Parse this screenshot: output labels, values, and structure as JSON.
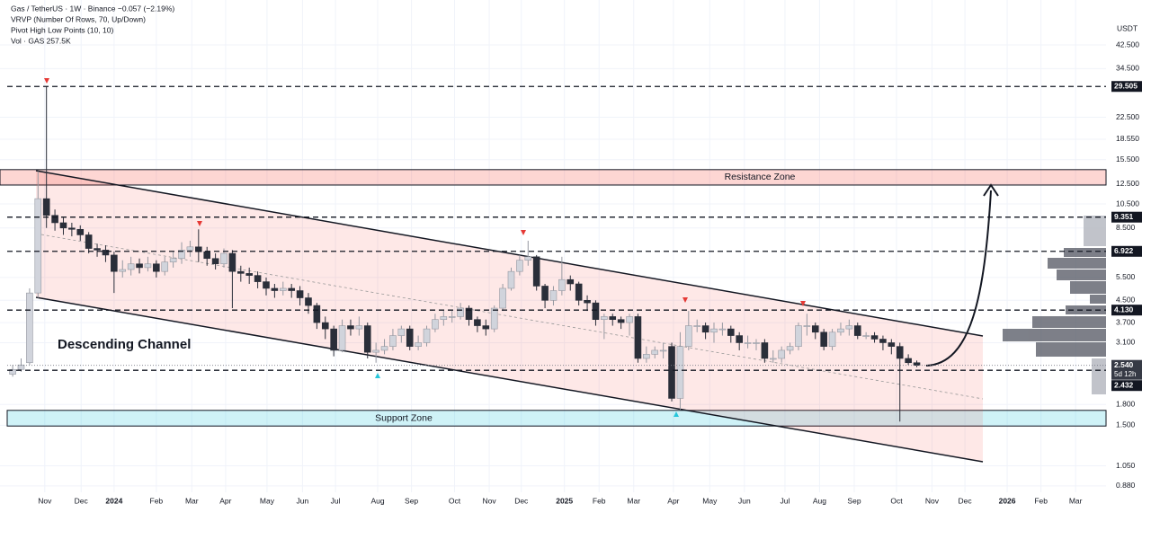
{
  "chart_data": {
    "type": "candlestick",
    "header": [
      "Gas / TetherUS · 1W · Binance  −0.057 (−2.19%)",
      "VRVP (Number Of Rows, 70, Up/Down)",
      "Pivot High Low Points (10, 10)",
      "Vol · GAS  257.5K"
    ],
    "y_axis_title": "USDT",
    "annotation": "Descending Channel",
    "resistance_zone": {
      "label": "Resistance Zone",
      "range": [
        12.4,
        14.2
      ]
    },
    "support_zone": {
      "label": "Support Zone",
      "range": [
        1.49,
        1.71
      ]
    },
    "log_scale": true,
    "grid": true,
    "up_color": "#d1d4dc",
    "down_color": "#2a2e39",
    "ylim": [
      0.832,
      63.1
    ],
    "yticks": [
      {
        "value": 42.5,
        "label": "42.500"
      },
      {
        "value": 34.5,
        "label": "34.500"
      },
      {
        "value": 22.5,
        "label": "22.500"
      },
      {
        "value": 18.55,
        "label": "18.550"
      },
      {
        "value": 15.5,
        "label": "15.500"
      },
      {
        "value": 12.5,
        "label": "12.500"
      },
      {
        "value": 10.5,
        "label": "10.500"
      },
      {
        "value": 8.5,
        "label": "8.500"
      },
      {
        "value": 5.5,
        "label": "5.500"
      },
      {
        "value": 4.5,
        "label": "4.500"
      },
      {
        "value": 3.7,
        "label": "3.700"
      },
      {
        "value": 3.1,
        "label": "3.100"
      },
      {
        "value": 1.8,
        "label": "1.800"
      },
      {
        "value": 1.5,
        "label": "1.500"
      },
      {
        "value": 1.05,
        "label": "1.050"
      },
      {
        "value": 0.88,
        "label": "0.880"
      }
    ],
    "levels": [
      {
        "value": 29.505,
        "label": "29.505"
      },
      {
        "value": 9.351,
        "label": "9.351"
      },
      {
        "value": 6.922,
        "label": "6.922"
      },
      {
        "value": 4.13,
        "label": "4.130"
      },
      {
        "value": 2.432,
        "label": "2.432"
      }
    ],
    "last_price": {
      "value": 2.54,
      "label": "2.540",
      "countdown": "5d 12h"
    },
    "xlim": [
      -1.5,
      129.4
    ],
    "xticks": [
      {
        "value": 3.8,
        "label": "Nov"
      },
      {
        "value": 8.1,
        "label": "Dec"
      },
      {
        "value": 12,
        "label": "2024"
      },
      {
        "value": 17,
        "label": "Feb"
      },
      {
        "value": 21.2,
        "label": "Mar"
      },
      {
        "value": 25.2,
        "label": "Apr"
      },
      {
        "value": 30.1,
        "label": "May"
      },
      {
        "value": 34.3,
        "label": "Jun"
      },
      {
        "value": 38.2,
        "label": "Jul"
      },
      {
        "value": 43.2,
        "label": "Aug"
      },
      {
        "value": 47.2,
        "label": "Sep"
      },
      {
        "value": 52.3,
        "label": "Oct"
      },
      {
        "value": 56.4,
        "label": "Nov"
      },
      {
        "value": 60.2,
        "label": "Dec"
      },
      {
        "value": 65.3,
        "label": "2025"
      },
      {
        "value": 69.4,
        "label": "Feb"
      },
      {
        "value": 73.5,
        "label": "Mar"
      },
      {
        "value": 78.2,
        "label": "Apr"
      },
      {
        "value": 82.5,
        "label": "May"
      },
      {
        "value": 86.6,
        "label": "Jun"
      },
      {
        "value": 91.4,
        "label": "Jul"
      },
      {
        "value": 95.5,
        "label": "Aug"
      },
      {
        "value": 99.6,
        "label": "Sep"
      },
      {
        "value": 104.6,
        "label": "Oct"
      },
      {
        "value": 108.8,
        "label": "Nov"
      },
      {
        "value": 112.7,
        "label": "Dec"
      },
      {
        "value": 117.7,
        "label": "2026"
      },
      {
        "value": 121.7,
        "label": "Feb"
      },
      {
        "value": 125.8,
        "label": "Mar"
      }
    ],
    "open": [
      2.35,
      2.45,
      2.6,
      4.8,
      11,
      9.5,
      8.9,
      8.5,
      8.4,
      8,
      7.1,
      7,
      6.7,
      5.8,
      5.9,
      6.2,
      6,
      6.2,
      5.8,
      6.3,
      6.5,
      7,
      7.2,
      6.9,
      6.5,
      6.2,
      6.8,
      5.8,
      5.7,
      5.6,
      5.3,
      5,
      4.9,
      5,
      4.9,
      4.6,
      4.3,
      3.7,
      3.5,
      2.9,
      3.6,
      3.5,
      3.6,
      2.85,
      2.9,
      3,
      3.3,
      3.5,
      3,
      3.1,
      3.5,
      3.8,
      3.9,
      3.9,
      4.2,
      3.8,
      3.6,
      3.5,
      4.2,
      5,
      5.8,
      6.4,
      6.6,
      5.1,
      4.5,
      4.9,
      5.4,
      5.2,
      4.5,
      4.4,
      3.8,
      3.9,
      3.8,
      3.7,
      3.9,
      2.7,
      2.8,
      2.9,
      3,
      1.9,
      3,
      3.6,
      3.6,
      3.4,
      3.5,
      3.5,
      3.3,
      3.1,
      3.1,
      3.1,
      2.7,
      2.7,
      2.9,
      3,
      3.6,
      3.6,
      3.4,
      3,
      3.4,
      3.5,
      3.6,
      3.3,
      3.3,
      3.2,
      3.1,
      3,
      2.7,
      2.6
    ],
    "high": [
      2.55,
      2.7,
      5,
      14,
      29.5,
      10,
      9.3,
      8.9,
      8.7,
      8.2,
      7.4,
      7.3,
      6.9,
      6.4,
      6.6,
      6.5,
      6.6,
      6.4,
      6.6,
      6.9,
      7.5,
      7.6,
      8.4,
      7.2,
      6.8,
      7.1,
      7,
      6.1,
      6,
      5.8,
      5.5,
      5.2,
      5.3,
      5.2,
      5.1,
      4.8,
      4.4,
      3.9,
      3.6,
      3.8,
      3.8,
      3.9,
      3.7,
      3.1,
      3.2,
      3.5,
      3.6,
      3.6,
      3.3,
      3.6,
      4,
      4.1,
      4.1,
      4.4,
      4.3,
      3.9,
      3.8,
      4.3,
      5.2,
      6,
      6.7,
      7.6,
      6.7,
      5.2,
      5.1,
      6.6,
      5.6,
      5.3,
      4.7,
      4.5,
      4,
      4,
      3.9,
      4,
      4,
      3,
      3,
      3.1,
      3.1,
      3.4,
      4.1,
      3.8,
      3.7,
      3.7,
      3.7,
      3.6,
      3.4,
      3.3,
      3.2,
      3.2,
      2.9,
      3,
      3.1,
      3.7,
      4,
      3.7,
      3.5,
      3.5,
      3.7,
      3.8,
      3.7,
      3.4,
      3.4,
      3.3,
      3.2,
      3.1,
      2.8,
      2.65
    ],
    "low": [
      2.3,
      2.4,
      2.55,
      4.6,
      8.5,
      8.3,
      8,
      7.9,
      7.6,
      6.8,
      6.6,
      6.3,
      4.8,
      5.5,
      5.6,
      5.7,
      5.8,
      5.5,
      5.6,
      6,
      6.2,
      6.6,
      6.3,
      6.1,
      5.9,
      6,
      4.2,
      5.3,
      5.2,
      5,
      4.7,
      4.6,
      4.7,
      4.6,
      4.3,
      4,
      3.5,
      3.2,
      2.75,
      2.85,
      3.3,
      3.3,
      2.7,
      2.6,
      2.8,
      2.9,
      3.1,
      2.9,
      2.9,
      3,
      3.4,
      3.6,
      3.7,
      3.8,
      3.6,
      3.4,
      3.3,
      3.4,
      4.1,
      4.9,
      5.6,
      6.1,
      4.9,
      4.2,
      4.3,
      4.7,
      4.9,
      4.3,
      4.1,
      3.6,
      3.2,
      3.6,
      3.5,
      3.3,
      2.6,
      2.6,
      2.7,
      2.7,
      1.85,
      1.72,
      2.9,
      3.4,
      3.2,
      3.1,
      3.3,
      3.1,
      2.9,
      2.95,
      2.9,
      2.6,
      2.6,
      2.6,
      2.8,
      2.9,
      3.3,
      3.2,
      2.9,
      2.9,
      3.3,
      3.3,
      3.2,
      3.2,
      3.1,
      2.9,
      2.8,
      1.55,
      2.55,
      2.5
    ],
    "close": [
      2.45,
      2.55,
      4.8,
      11,
      9.5,
      8.9,
      8.5,
      8.4,
      8,
      7.1,
      7,
      6.7,
      5.8,
      5.9,
      6.2,
      6,
      6.2,
      5.8,
      6.3,
      6.5,
      7,
      7.2,
      6.9,
      6.5,
      6.2,
      6.8,
      5.8,
      5.7,
      5.6,
      5.3,
      5,
      4.9,
      5,
      4.9,
      4.6,
      4.3,
      3.7,
      3.5,
      2.9,
      3.6,
      3.5,
      3.6,
      2.85,
      2.9,
      3,
      3.3,
      3.5,
      3,
      3.1,
      3.5,
      3.8,
      3.9,
      3.9,
      4.2,
      3.8,
      3.6,
      3.5,
      4.2,
      5,
      5.8,
      6.4,
      6.6,
      5.1,
      4.5,
      4.9,
      5.4,
      5.2,
      4.5,
      4.4,
      3.8,
      3.9,
      3.8,
      3.7,
      3.9,
      2.7,
      2.8,
      2.9,
      2.9,
      1.9,
      3,
      3.6,
      3.6,
      3.4,
      3.5,
      3.5,
      3.3,
      3.1,
      3.1,
      3.1,
      2.7,
      2.7,
      2.9,
      3,
      3.6,
      3.6,
      3.4,
      3,
      3.4,
      3.5,
      3.6,
      3.3,
      3.3,
      3.2,
      3.1,
      3,
      2.7,
      2.6,
      2.54
    ]
  }
}
